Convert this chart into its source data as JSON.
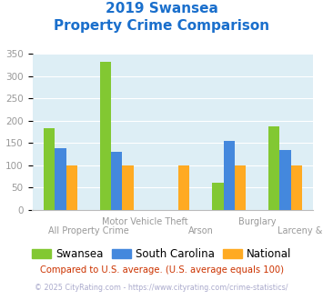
{
  "title_line1": "2019 Swansea",
  "title_line2": "Property Crime Comparison",
  "categories": [
    "All Property Crime",
    "Motor Vehicle Theft",
    "Arson",
    "Burglary",
    "Larceny & Theft"
  ],
  "series": {
    "Swansea": [
      183,
      333,
      0,
      62,
      188
    ],
    "South Carolina": [
      138,
      130,
      0,
      155,
      135
    ],
    "National": [
      100,
      100,
      100,
      100,
      100
    ]
  },
  "colors": {
    "Swansea": "#82c832",
    "South Carolina": "#4488dd",
    "National": "#ffaa22"
  },
  "ylim": [
    0,
    350
  ],
  "yticks": [
    0,
    50,
    100,
    150,
    200,
    250,
    300,
    350
  ],
  "title_color": "#1a6fcc",
  "axis_label_color": "#999999",
  "footnote1": "Compared to U.S. average. (U.S. average equals 100)",
  "footnote2": "© 2025 CityRating.com - https://www.cityrating.com/crime-statistics/",
  "footnote1_color": "#cc3300",
  "footnote2_color": "#aaaacc",
  "background_color": "#ddeef5",
  "fig_background": "#ffffff",
  "grid_color": "#ffffff",
  "bar_width": 0.2,
  "legend_fontsize": 8.5,
  "title_fontsize": 11,
  "xtick_upper": [
    1,
    3
  ],
  "xtick_lower": [
    0,
    2,
    4
  ]
}
